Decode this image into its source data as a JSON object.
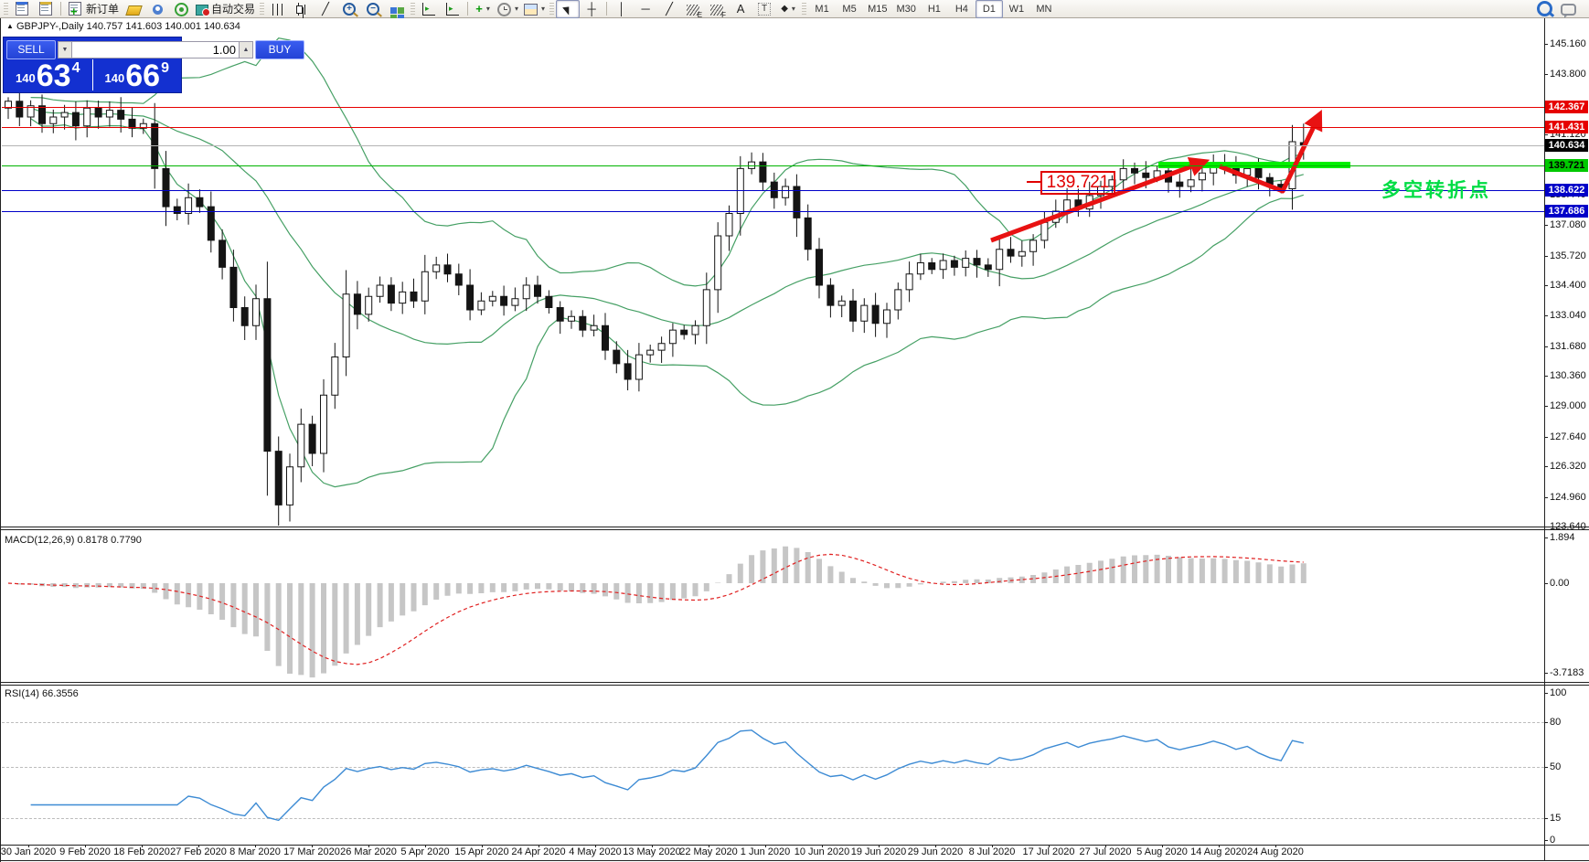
{
  "toolbar": {
    "new_order": "新订单",
    "auto_trading": "自动交易",
    "timeframes": [
      "M1",
      "M5",
      "M15",
      "M30",
      "H1",
      "H4",
      "D1",
      "W1",
      "MN"
    ],
    "active_timeframe": "D1"
  },
  "trade_panel": {
    "sell_label": "SELL",
    "buy_label": "BUY",
    "volume": "1.00",
    "bid": "140.634",
    "ask": "140.669",
    "sell": {
      "prefix": "140",
      "big": "63",
      "sup": "4"
    },
    "buy": {
      "prefix": "140",
      "big": "66",
      "sup": "9"
    }
  },
  "chart": {
    "symbol_title": "GBPJPY-,Daily",
    "ohlc": "140.757 141.603 140.001 140.634"
  },
  "annotations": {
    "level_label": "139.721",
    "turning_text": "多空转折点"
  },
  "price_axis": {
    "ticks": [
      "145.160",
      "143.800",
      "141.120",
      "138.440",
      "137.080",
      "135.720",
      "134.400",
      "133.040",
      "131.680",
      "130.360",
      "129.000",
      "127.640",
      "126.320",
      "124.960",
      "123.640"
    ],
    "badges": [
      {
        "label": "142.367",
        "bg": "#e60000",
        "fg": "#ffffff"
      },
      {
        "label": "141.431",
        "bg": "#e60000",
        "fg": "#ffffff"
      },
      {
        "label": "140.634",
        "bg": "#000000",
        "fg": "#ffffff"
      },
      {
        "label": "139.721",
        "bg": "#00c800",
        "fg": "#000000"
      },
      {
        "label": "138.622",
        "bg": "#0000c8",
        "fg": "#ffffff"
      },
      {
        "label": "137.686",
        "bg": "#0000c8",
        "fg": "#ffffff"
      }
    ]
  },
  "hlines": [
    {
      "price": 142.367,
      "color": "#e60000"
    },
    {
      "price": 141.431,
      "color": "#e60000"
    },
    {
      "price": 140.634,
      "color": "#b4b4b4"
    },
    {
      "price": 139.721,
      "color": "#00b400"
    },
    {
      "price": 138.622,
      "color": "#0000c8"
    },
    {
      "price": 137.686,
      "color": "#0000c8"
    }
  ],
  "macd": {
    "name": "MACD(12,26,9)",
    "values": "0.8178 0.7790",
    "axis": [
      "1.894",
      "0.00",
      "-3.7183"
    ]
  },
  "rsi": {
    "name": "RSI(14)",
    "value": "66.3556",
    "axis": [
      "100",
      "80",
      "50",
      "15",
      "0"
    ],
    "levels": [
      80,
      50,
      15
    ]
  },
  "date_axis": [
    "30 Jan 2020",
    "9 Feb 2020",
    "18 Feb 2020",
    "27 Feb 2020",
    "8 Mar 2020",
    "17 Mar 2020",
    "26 Mar 2020",
    "5 Apr 2020",
    "15 Apr 2020",
    "24 Apr 2020",
    "4 May 2020",
    "13 May 2020",
    "22 May 2020",
    "1 Jun 2020",
    "10 Jun 2020",
    "19 Jun 2020",
    "29 Jun 2020",
    "8 Jul 2020",
    "17 Jul 2020",
    "27 Jul 2020",
    "5 Aug 2020",
    "14 Aug 2020",
    "24 Aug 2020"
  ],
  "chart_data": {
    "type": "candlestick",
    "symbol": "GBPJPY-",
    "period": "Daily",
    "current_bar": {
      "open": 140.757,
      "high": 141.603,
      "low": 140.001,
      "close": 140.634
    },
    "bid": "140.634",
    "ask": "140.669",
    "price_axis_range": [
      123.64,
      145.16
    ],
    "key_levels": [
      142.367,
      141.431,
      140.634,
      139.721,
      138.622,
      137.686
    ],
    "closes": [
      142.6,
      141.9,
      142.4,
      141.6,
      141.9,
      142.1,
      141.5,
      142.3,
      141.9,
      142.2,
      141.8,
      141.4,
      141.6,
      139.6,
      137.9,
      137.6,
      138.3,
      137.9,
      136.4,
      135.2,
      133.4,
      132.6,
      133.8,
      127.0,
      124.6,
      126.3,
      128.2,
      126.9,
      129.5,
      131.2,
      134.0,
      133.1,
      133.9,
      134.4,
      133.6,
      134.1,
      133.7,
      135.0,
      135.3,
      134.9,
      134.4,
      133.3,
      133.7,
      133.9,
      133.5,
      133.8,
      134.4,
      133.9,
      133.4,
      132.8,
      133.0,
      132.4,
      132.6,
      131.5,
      130.9,
      130.2,
      131.3,
      131.5,
      131.8,
      132.4,
      132.2,
      132.6,
      134.2,
      136.6,
      137.6,
      139.6,
      139.9,
      139.0,
      138.3,
      138.8,
      137.4,
      136.0,
      134.4,
      133.5,
      133.7,
      132.8,
      133.5,
      132.7,
      133.3,
      134.2,
      134.9,
      135.4,
      135.1,
      135.5,
      135.2,
      135.6,
      135.3,
      135.1,
      136.0,
      135.7,
      135.9,
      136.4,
      137.2,
      137.7,
      138.2,
      137.8,
      138.4,
      138.8,
      139.1,
      139.6,
      139.4,
      139.2,
      139.5,
      139.0,
      138.8,
      139.1,
      139.4,
      139.8,
      139.6,
      139.3,
      139.6,
      139.2,
      138.9,
      138.7,
      140.8,
      140.634
    ],
    "indicators": [
      {
        "name": "Bollinger Bands",
        "color": "#46a065"
      },
      {
        "name": "MACD(12,26,9)",
        "main": 0.8178,
        "signal": 0.779,
        "range": [
          -3.7183,
          1.894
        ]
      },
      {
        "name": "RSI(14)",
        "value": 66.3556,
        "range": [
          0,
          100
        ],
        "levels": [
          15,
          50,
          80
        ]
      }
    ]
  }
}
